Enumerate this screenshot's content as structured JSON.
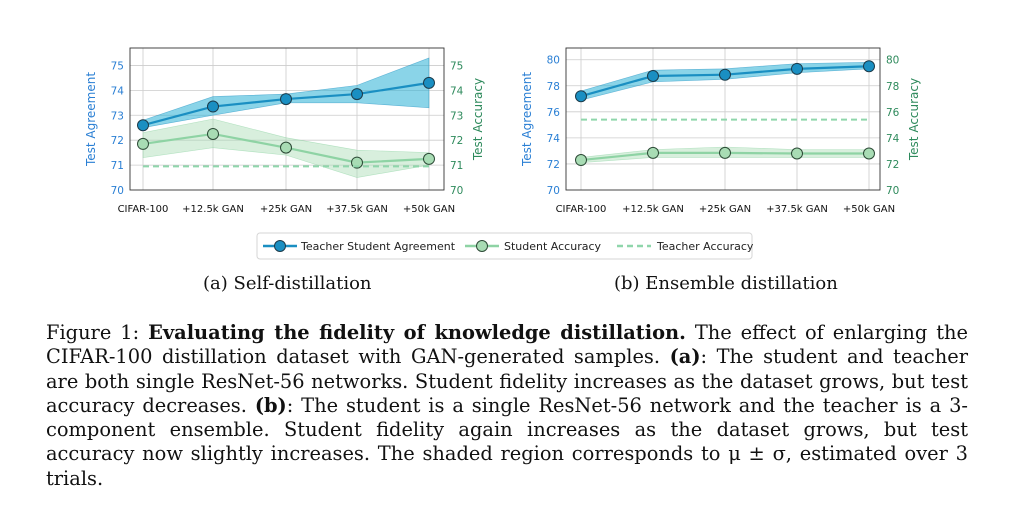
{
  "chart_data": [
    {
      "type": "line",
      "title": "",
      "categories": [
        "CIFAR-100",
        "+12.5k GAN",
        "+25k GAN",
        "+37.5k GAN",
        "+50k GAN"
      ],
      "ylabel_left": "Test Agreement",
      "ylabel_right": "Test Accuracy",
      "ylim_left": [
        70,
        75.7
      ],
      "ylim_right": [
        70,
        75.7
      ],
      "yticks_left": [
        "70",
        "71",
        "72",
        "73",
        "74",
        "75"
      ],
      "yticks_right": [
        "70",
        "71",
        "72",
        "73",
        "74",
        "75"
      ],
      "grid": true,
      "series": [
        {
          "name": "Teacher Student Agreement",
          "axis": "left",
          "values": [
            72.6,
            73.35,
            73.65,
            73.85,
            74.3
          ],
          "band_low": [
            72.5,
            73.0,
            73.5,
            73.5,
            73.3
          ],
          "band_high": [
            72.8,
            73.75,
            73.85,
            74.2,
            75.3
          ]
        },
        {
          "name": "Student Accuracy",
          "axis": "right",
          "values": [
            71.85,
            72.25,
            71.7,
            71.1,
            71.25
          ],
          "band_low": [
            71.3,
            71.7,
            71.4,
            70.5,
            71.0
          ],
          "band_high": [
            72.3,
            72.85,
            72.1,
            71.6,
            71.5
          ]
        },
        {
          "name": "Teacher Accuracy",
          "axis": "right",
          "dashed": true,
          "values": [
            70.95,
            70.95,
            70.95,
            70.95,
            70.95
          ]
        }
      ]
    },
    {
      "type": "line",
      "title": "",
      "categories": [
        "CIFAR-100",
        "+12.5k GAN",
        "+25k GAN",
        "+37.5k GAN",
        "+50k GAN"
      ],
      "ylabel_left": "Test Agreement",
      "ylabel_right": "Test Accuracy",
      "ylim_left": [
        70,
        80.9
      ],
      "ylim_right": [
        70,
        80.9
      ],
      "yticks_left": [
        "70",
        "72",
        "74",
        "76",
        "78",
        "80"
      ],
      "yticks_right": [
        "70",
        "72",
        "74",
        "76",
        "78",
        "80"
      ],
      "grid": true,
      "series": [
        {
          "name": "Teacher Student Agreement",
          "axis": "left",
          "values": [
            77.2,
            78.75,
            78.85,
            79.3,
            79.5
          ],
          "band_low": [
            76.9,
            78.3,
            78.5,
            79.0,
            79.3
          ],
          "band_high": [
            77.6,
            79.2,
            79.3,
            79.7,
            79.8
          ]
        },
        {
          "name": "Student Accuracy",
          "axis": "right",
          "values": [
            72.3,
            72.85,
            72.85,
            72.8,
            72.8
          ],
          "band_low": [
            72.1,
            72.5,
            72.5,
            72.5,
            72.5
          ],
          "band_high": [
            72.5,
            73.1,
            73.3,
            73.1,
            73.1
          ]
        },
        {
          "name": "Teacher Accuracy",
          "axis": "right",
          "dashed": true,
          "values": [
            75.4,
            75.4,
            75.4,
            75.4,
            75.4
          ]
        }
      ]
    }
  ],
  "legend": {
    "placement": "bottom-center",
    "items": [
      "Teacher Student Agreement",
      "Student Accuracy",
      "Teacher Accuracy"
    ]
  },
  "subcaptions": {
    "a": "(a) Self-distillation",
    "b": "(b) Ensemble distillation"
  },
  "caption": {
    "label": "Figure 1: ",
    "bold_title": "Evaluating the fidelity of knowledge distillation.",
    "text1": " The effect of enlarging the CIFAR-100 distillation dataset with GAN-generated samples. ",
    "bold_a": "(a)",
    "text2": ": The student and teacher are both single ResNet-56 networks. Student fidelity increases as the dataset grows, but test accuracy decreases. ",
    "bold_b": "(b)",
    "text3": ": The student is a single ResNet-56 network and the teacher is a 3-component ensemble. Student fidelity again increases as the dataset grows, but test accuracy now slightly increases. The shaded region corresponds to μ ± σ, estimated over 3 trials."
  },
  "colors": {
    "agreement": "#1a8fc2",
    "agreement_band": "#29b0d6",
    "student": "#8ed3a4",
    "student_band": "#a8dcb4",
    "teacher": "#8fd6ab",
    "left_axis_text": "#2a7fd4",
    "right_axis_text": "#2e8a5c",
    "grid": "#cccccc"
  }
}
